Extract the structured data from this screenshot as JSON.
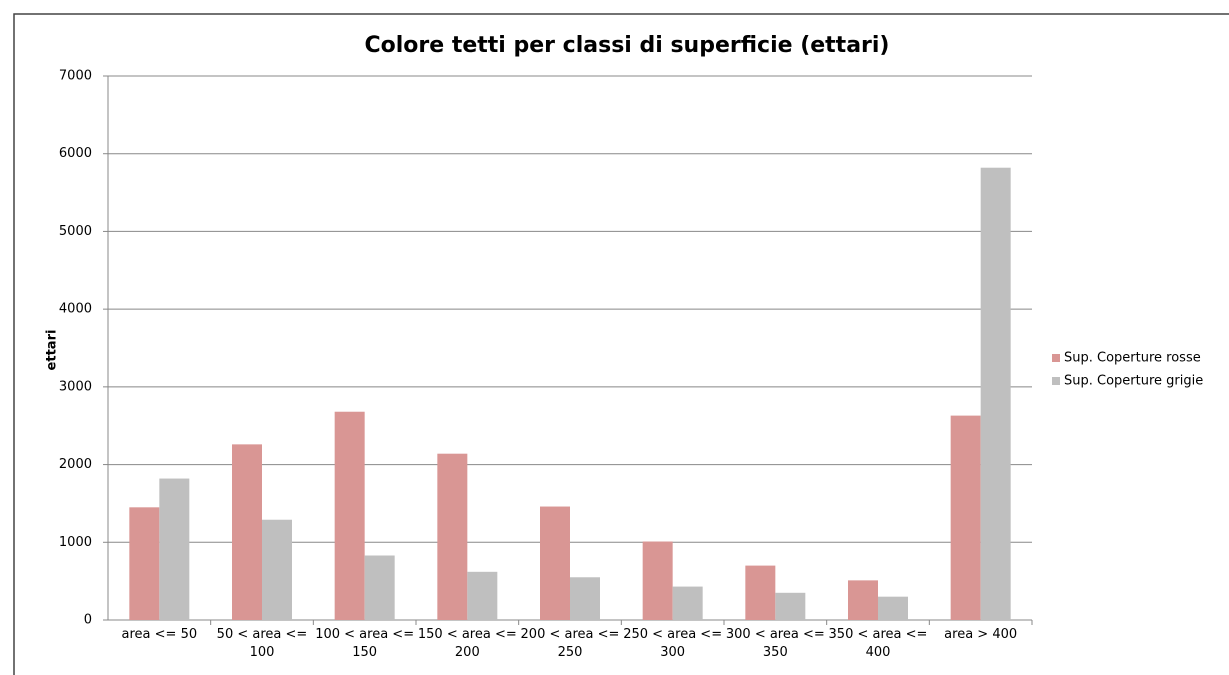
{
  "chart_data": {
    "type": "bar",
    "title": "Colore tetti per classi di superficie (ettari)",
    "y_label": "ettari",
    "categories": [
      "area <= 50",
      "50 < area <= 100",
      "100 < area <= 150",
      "150 < area <= 200",
      "200 < area <= 250",
      "250 < area <= 300",
      "300 < area <= 350",
      "350 < area <= 400",
      "area > 400"
    ],
    "series": [
      {
        "name": "Sup. Coperture rosse",
        "color": "#d99694",
        "values": [
          1450,
          2260,
          2680,
          2140,
          1460,
          1010,
          700,
          510,
          2630
        ]
      },
      {
        "name": "Sup. Coperture grigie",
        "color": "#bfbfbf",
        "values": [
          1820,
          1290,
          830,
          620,
          550,
          430,
          350,
          300,
          5820
        ]
      }
    ],
    "ylim": [
      0,
      7000
    ],
    "yticks": [
      0,
      1000,
      2000,
      3000,
      4000,
      5000,
      6000,
      7000
    ],
    "grid": true,
    "legend": "right"
  }
}
